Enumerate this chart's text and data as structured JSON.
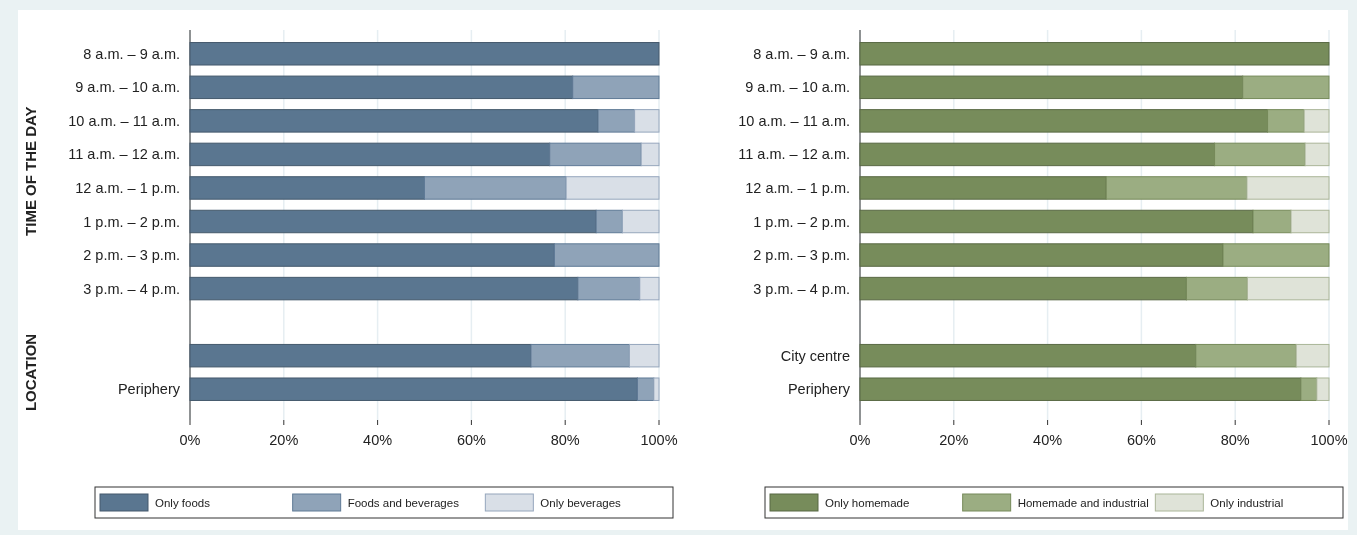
{
  "chart_data": [
    {
      "type": "bar",
      "orientation": "horizontal",
      "stacked": true,
      "ylabel": "TIME OF THE DAY",
      "annotations": [
        "LOCATION"
      ],
      "categories": [
        "8 a.m. – 9 a.m.",
        "9 a.m. – 10 a.m.",
        "10 a.m. – 11 a.m.",
        "11 a.m. – 12 a.m.",
        "12 a.m. – 1 p.m.",
        "1 p.m. – 2 p.m.",
        "2 p.m. – 3 p.m.",
        "3 p.m. – 4 p.m.",
        null,
        null,
        "Periphery"
      ],
      "series": [
        {
          "name": "Only foods",
          "color": "#5a7690",
          "values": [
            100,
            81.6,
            87,
            76.7,
            50,
            86.6,
            77.7,
            82.7,
            null,
            72.7,
            95.4
          ]
        },
        {
          "name": "Foods and beverages",
          "color": "#8fa3b8",
          "values": [
            0,
            18.4,
            7.8,
            19.5,
            30.2,
            5.6,
            22.3,
            13.2,
            null,
            21,
            3.5
          ]
        },
        {
          "name": "Only beverages",
          "color": "#d9dfe7",
          "values": [
            0,
            0,
            5.2,
            3.8,
            19.8,
            7.8,
            0,
            4.1,
            null,
            6.3,
            1.1
          ]
        }
      ],
      "xlim": [
        0,
        100
      ],
      "xticks": [
        {
          "value": 0,
          "label": "0%"
        },
        {
          "value": 20,
          "label": "20%"
        },
        {
          "value": 40,
          "label": "40%"
        },
        {
          "value": 60,
          "label": "60%"
        },
        {
          "value": 80,
          "label": "80%"
        },
        {
          "value": 100,
          "label": "100%"
        }
      ],
      "grid": "x",
      "legend": "bottom"
    },
    {
      "type": "bar",
      "orientation": "horizontal",
      "stacked": true,
      "categories": [
        "8 a.m. – 9 a.m.",
        "9 a.m. – 10 a.m.",
        "10 a.m. – 11 a.m.",
        "11 a.m. – 12 a.m.",
        "12 a.m. – 1 p.m.",
        "1 p.m. – 2 p.m.",
        "2 p.m. – 3 p.m.",
        "3 p.m. – 4 p.m.",
        null,
        "City centre",
        "Periphery"
      ],
      "series": [
        {
          "name": "Only homemade",
          "color": "#778c5b",
          "values": [
            100,
            81.6,
            86.9,
            75.6,
            52.5,
            83.8,
            77.4,
            69.6,
            null,
            71.6,
            94
          ]
        },
        {
          "name": "Homemade and industrial",
          "color": "#9bad82",
          "values": [
            0,
            18.4,
            7.8,
            19.3,
            30,
            8.1,
            22.6,
            13,
            null,
            21.4,
            3.4
          ]
        },
        {
          "name": "Only industrial",
          "color": "#dfe3d8",
          "values": [
            0,
            0,
            5.3,
            5.1,
            17.5,
            8.1,
            0,
            17.4,
            null,
            7,
            2.6
          ]
        }
      ],
      "xlim": [
        0,
        100
      ],
      "xticks": [
        {
          "value": 0,
          "label": "0%"
        },
        {
          "value": 20,
          "label": "20%"
        },
        {
          "value": 40,
          "label": "40%"
        },
        {
          "value": 60,
          "label": "60%"
        },
        {
          "value": 80,
          "label": "80%"
        },
        {
          "value": 100,
          "label": "100%"
        }
      ],
      "grid": "x",
      "legend": "bottom"
    }
  ]
}
